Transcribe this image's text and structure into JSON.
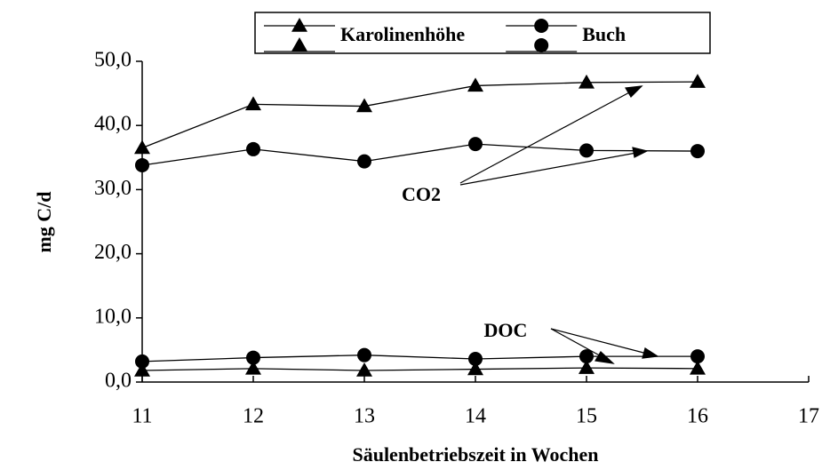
{
  "chart_data": {
    "type": "line",
    "x_label": "Säulenbetriebszeit in Wochen",
    "y_label": "mg C/d",
    "x": [
      11,
      12,
      13,
      14,
      15,
      16
    ],
    "series": [
      {
        "name": "Karolinenhöhe",
        "marker": "triangle",
        "color": "#000000",
        "values": [
          36.5,
          43.3,
          43.0,
          46.2,
          46.7,
          46.8
        ]
      },
      {
        "name": "Buch",
        "marker": "circle",
        "color": "#000000",
        "values": [
          33.8,
          36.3,
          34.4,
          37.1,
          36.1,
          36.0
        ]
      },
      {
        "marker": "triangle",
        "color": "#000000",
        "values": [
          1.8,
          2.1,
          1.8,
          2.0,
          2.2,
          2.1
        ]
      },
      {
        "marker": "circle",
        "color": "#000000",
        "values": [
          3.2,
          3.8,
          4.2,
          3.6,
          4.0,
          4.0
        ]
      }
    ],
    "annotations": [
      "CO2",
      "DOC"
    ],
    "xlim": [
      11,
      17
    ],
    "xticks": [
      11,
      12,
      13,
      14,
      15,
      16,
      17
    ],
    "ylim": [
      0,
      50
    ],
    "yticks": [
      {
        "value": 0,
        "label": "0,0"
      },
      {
        "value": 10,
        "label": "10,0"
      },
      {
        "value": 20,
        "label": "20,0"
      },
      {
        "value": 30,
        "label": "30,0"
      },
      {
        "value": 40,
        "label": "40,0"
      },
      {
        "value": 50,
        "label": "50,0"
      }
    ],
    "legend": "top"
  }
}
